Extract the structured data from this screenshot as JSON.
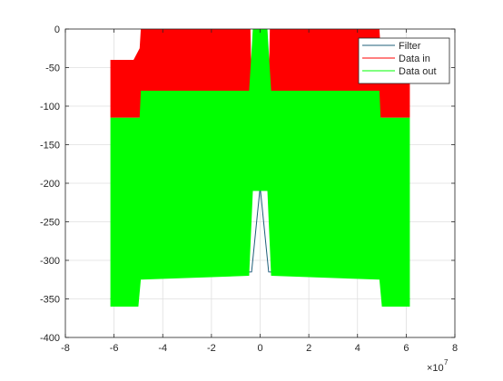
{
  "chart_data": {
    "type": "line",
    "title": "",
    "xlabel": "",
    "ylabel": "",
    "x_exponent_label": "×10",
    "x_exponent_power": "7",
    "xlim": [
      -8,
      8
    ],
    "ylim": [
      -400,
      0
    ],
    "xticks": [
      -8,
      -6,
      -4,
      -2,
      0,
      2,
      4,
      6,
      8
    ],
    "yticks": [
      0,
      -50,
      -100,
      -150,
      -200,
      -250,
      -300,
      -350,
      -400
    ],
    "xtick_labels": [
      "-8",
      "-6",
      "-4",
      "-2",
      "0",
      "2",
      "4",
      "6",
      "8"
    ],
    "ytick_labels": [
      "0",
      "-50",
      "-100",
      "-150",
      "-200",
      "-250",
      "-300",
      "-350",
      "-400"
    ],
    "grid": true,
    "legend_position": "top-right",
    "series": [
      {
        "name": "Filter",
        "color": "#1f5f7a",
        "x": [
          -6.15,
          -4.9,
          -0.35,
          0,
          0.35,
          4.9,
          6.15
        ],
        "y": [
          -350,
          -320,
          -315,
          -205,
          -315,
          -320,
          -350
        ]
      },
      {
        "name": "Data in",
        "color": "#ff0000",
        "x": [
          -6.15,
          -5.2,
          -4.95,
          -4.9,
          -0.4,
          -0.35,
          -0.3,
          0.3,
          0.35,
          0.4,
          4.9,
          4.95,
          5.2,
          6.15
        ],
        "y": [
          -40,
          -40,
          -25,
          0,
          0,
          -80,
          0,
          0,
          -80,
          0,
          0,
          -25,
          -40,
          -40
        ]
      },
      {
        "name": "Data out",
        "color": "#00ff00",
        "x": [
          -6.15,
          -4.95,
          -4.9,
          -0.45,
          -0.3,
          0.3,
          0.45,
          4.9,
          4.95,
          6.15
        ],
        "y": [
          -115,
          -115,
          -80,
          -80,
          0,
          0,
          -80,
          -80,
          -115,
          -115
        ],
        "band_floor": {
          "x": [
            -6.15,
            -5.0,
            -4.9,
            -0.45,
            -0.3,
            0.3,
            0.45,
            4.9,
            5.0,
            6.15
          ],
          "y": [
            -360,
            -360,
            -325,
            -320,
            -210,
            -210,
            -320,
            -325,
            -360,
            -360
          ]
        }
      }
    ]
  }
}
